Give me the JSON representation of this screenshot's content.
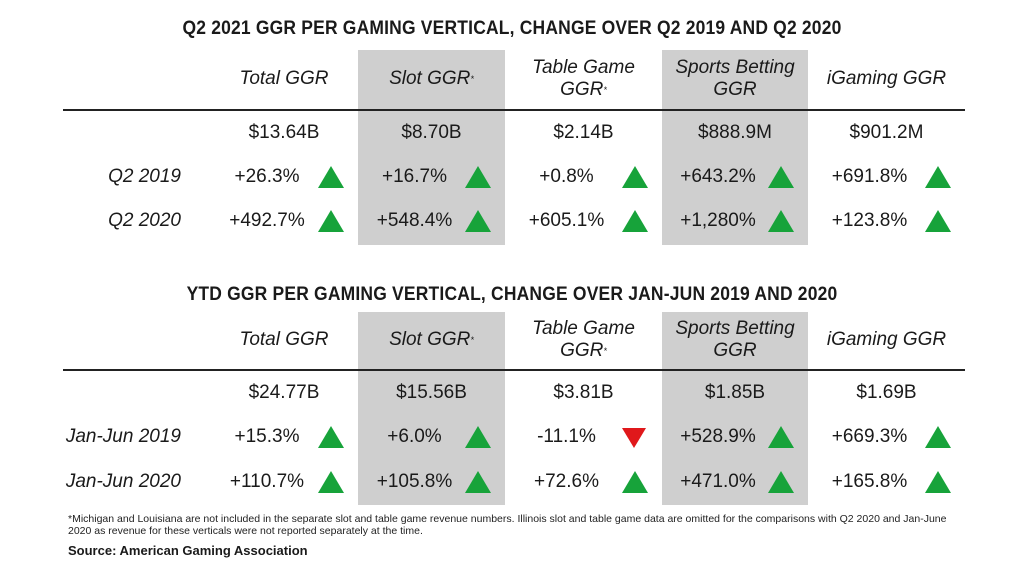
{
  "chart_data": [
    {
      "type": "table",
      "title": "Q2 2021 GGR PER GAMING VERTICAL, CHANGE OVER Q2 2019 AND Q2 2020",
      "columns": [
        {
          "label": "Total GGR",
          "sup": "",
          "shaded": false
        },
        {
          "label": "Slot GGR",
          "sup": "*",
          "shaded": true
        },
        {
          "label": "Table Game GGR",
          "sup": "*",
          "shaded": false
        },
        {
          "label": "Sports Betting GGR",
          "sup": "",
          "shaded": true
        },
        {
          "label": "iGaming GGR",
          "sup": "",
          "shaded": false
        }
      ],
      "totals": [
        "$13.64B",
        "$8.70B",
        "$2.14B",
        "$888.9M",
        "$901.2M"
      ],
      "rows": [
        {
          "label": "Q2 2019",
          "values": [
            "+26.3%",
            "+16.7%",
            "+0.8%",
            "+643.2%",
            "+691.8%"
          ],
          "trend": [
            "up",
            "up",
            "up",
            "up",
            "up"
          ]
        },
        {
          "label": "Q2 2020",
          "values": [
            "+492.7%",
            "+548.4%",
            "+605.1%",
            "+1,280%",
            "+123.8%"
          ],
          "trend": [
            "up",
            "up",
            "up",
            "up",
            "up"
          ]
        }
      ]
    },
    {
      "type": "table",
      "title": "YTD GGR PER GAMING VERTICAL, CHANGE OVER JAN-JUN 2019 AND 2020",
      "columns": [
        {
          "label": "Total GGR",
          "sup": "",
          "shaded": false
        },
        {
          "label": "Slot GGR",
          "sup": "*",
          "shaded": true
        },
        {
          "label": "Table Game GGR",
          "sup": "*",
          "shaded": false
        },
        {
          "label": "Sports Betting GGR",
          "sup": "",
          "shaded": true
        },
        {
          "label": "iGaming GGR",
          "sup": "",
          "shaded": false
        }
      ],
      "totals": [
        "$24.77B",
        "$15.56B",
        "$3.81B",
        "$1.85B",
        "$1.69B"
      ],
      "rows": [
        {
          "label": "Jan-Jun 2019",
          "values": [
            "+15.3%",
            "+6.0%",
            "-11.1%",
            "+528.9%",
            "+669.3%"
          ],
          "trend": [
            "up",
            "up",
            "down",
            "up",
            "up"
          ]
        },
        {
          "label": "Jan-Jun 2020",
          "values": [
            "+110.7%",
            "+105.8%",
            "+72.6%",
            "+471.0%",
            "+165.8%"
          ],
          "trend": [
            "up",
            "up",
            "up",
            "up",
            "up"
          ]
        }
      ]
    }
  ],
  "colors": {
    "up": "#17a33a",
    "down": "#e0181b",
    "shade": "#cfcfcf"
  },
  "footnote": "*Michigan and Louisiana are not included in the separate slot and table game revenue numbers. Illinois slot and table game data are omitted for the comparisons with Q2 2020 and Jan-June 2020 as revenue for these verticals were not reported separately at the time.",
  "source": "Source: American Gaming Association"
}
